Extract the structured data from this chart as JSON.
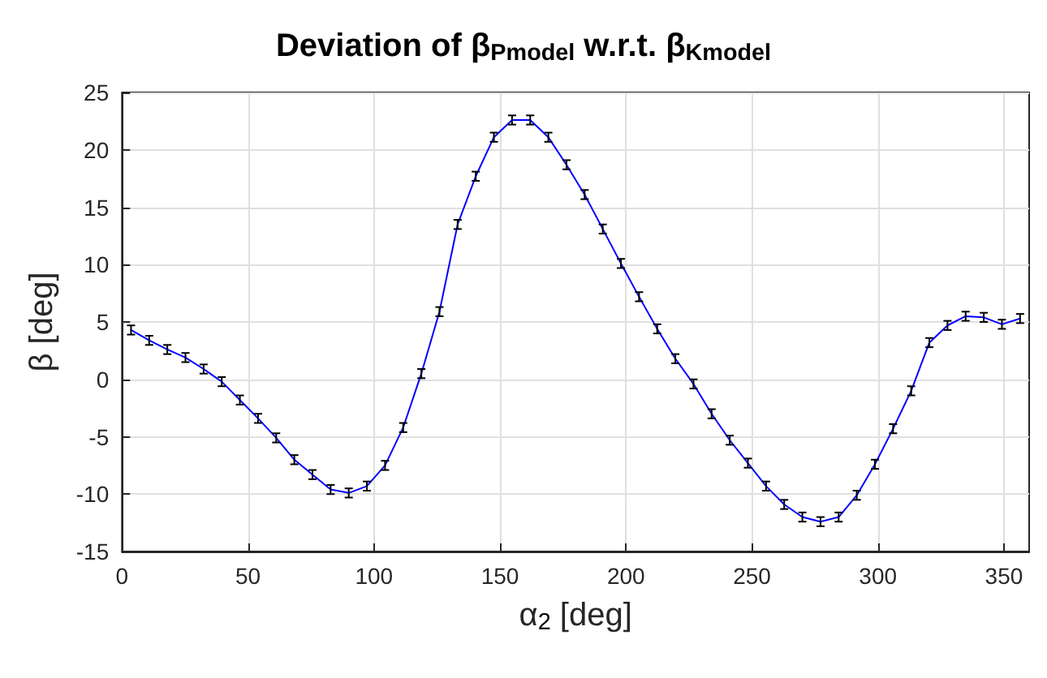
{
  "chart_data": {
    "type": "line",
    "title": "Deviation of β$_{Pmodel}$ w.r.t. β$_{Kmodel}$",
    "xlabel": "α$_{2}$ [deg]",
    "ylabel": "β [deg]",
    "x": [
      3.6,
      10.8,
      18,
      25.2,
      32.4,
      39.6,
      46.8,
      54,
      61.2,
      68.4,
      75.6,
      82.8,
      90,
      97.2,
      104.4,
      111.6,
      118.8,
      126,
      133.2,
      140.4,
      147.6,
      154.8,
      162,
      169.2,
      176.4,
      183.6,
      190.8,
      198,
      205.2,
      212.4,
      219.6,
      226.8,
      234,
      241.2,
      248.4,
      255.6,
      262.8,
      270,
      277.2,
      284.4,
      291.6,
      298.8,
      306,
      313.2,
      320.4,
      327.6,
      334.8,
      342,
      349.2,
      356.4
    ],
    "series": [
      {
        "color": "#0000ff",
        "values": [
          4.3,
          3.4,
          2.6,
          1.9,
          0.9,
          -0.2,
          -1.8,
          -3.4,
          -5.1,
          -7.0,
          -8.3,
          -9.6,
          -9.9,
          -9.3,
          -7.5,
          -4.2,
          0.5,
          5.9,
          13.5,
          17.7,
          21.1,
          22.6,
          22.6,
          21.1,
          18.7,
          16.1,
          13.1,
          10.1,
          7.2,
          4.4,
          1.8,
          -0.4,
          -3.0,
          -5.3,
          -7.3,
          -9.3,
          -10.9,
          -12.0,
          -12.4,
          -12.0,
          -10.1,
          -7.4,
          -4.3,
          -1.0,
          3.2,
          4.7,
          5.5,
          5.4,
          4.8,
          5.3
        ],
        "errors": [
          0.4,
          0.4,
          0.4,
          0.4,
          0.4,
          0.4,
          0.4,
          0.4,
          0.4,
          0.4,
          0.4,
          0.4,
          0.4,
          0.4,
          0.4,
          0.4,
          0.4,
          0.4,
          0.4,
          0.4,
          0.4,
          0.4,
          0.4,
          0.4,
          0.4,
          0.4,
          0.4,
          0.4,
          0.4,
          0.4,
          0.4,
          0.4,
          0.4,
          0.4,
          0.4,
          0.4,
          0.4,
          0.4,
          0.4,
          0.4,
          0.4,
          0.4,
          0.4,
          0.4,
          0.4,
          0.4,
          0.4,
          0.4,
          0.4,
          0.4
        ]
      }
    ],
    "xlim": [
      0,
      360
    ],
    "xticks": [
      0,
      50,
      100,
      150,
      200,
      250,
      300,
      350
    ],
    "ylim": [
      -15,
      25
    ],
    "yticks": [
      -15,
      -10,
      -5,
      0,
      5,
      10,
      15,
      20,
      25
    ],
    "grid": true,
    "marker": "none",
    "line_style": "solid"
  }
}
